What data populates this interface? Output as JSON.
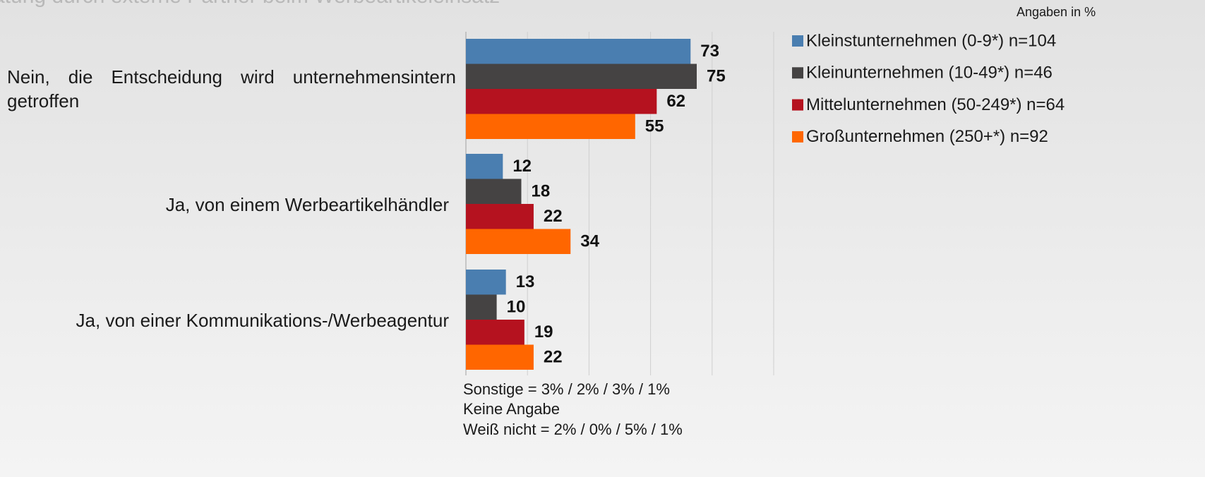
{
  "chart_data": {
    "type": "hbar",
    "title": "atung durch externe Partner beim Werbeartikeleinsatz",
    "unit_note": "Angaben in %",
    "categories": [
      "Nein, die Entscheidung wird unternehmensintern getroffen",
      "Ja, von einem Werbeartikelhändler",
      "Ja, von einer Kommunikations-/Werbeagentur"
    ],
    "series": [
      {
        "name": "Kleinstunternehmen (0-9*) n=104",
        "color": "#4a7eb0",
        "values": [
          73,
          12,
          13
        ]
      },
      {
        "name": "Kleinunternehmen (10-49*) n=46",
        "color": "#454343",
        "values": [
          75,
          18,
          10
        ]
      },
      {
        "name": "Mittelunternehmen (50-249*) n=64",
        "color": "#b5121f",
        "values": [
          62,
          22,
          19
        ]
      },
      {
        "name": "Großunternehmen (250+*) n=92",
        "color": "#ff6600",
        "values": [
          55,
          34,
          22
        ]
      }
    ],
    "xlim": [
      0,
      100
    ],
    "xticks": [
      0,
      20,
      40,
      60,
      80,
      100
    ],
    "grid": true,
    "legend": "right",
    "notes": [
      "Sonstige = 3% / 2% / 3% / 1%",
      "Keine Angabe",
      "Weiß nicht = 2% / 0% / 5% / 1%"
    ]
  }
}
